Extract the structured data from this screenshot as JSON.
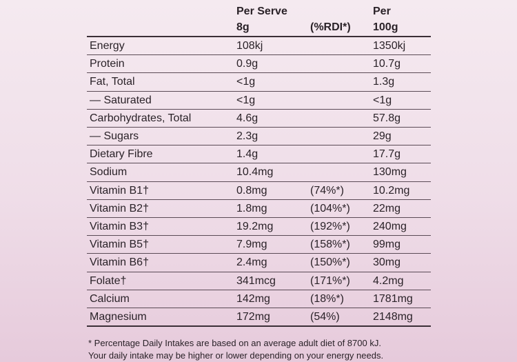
{
  "table": {
    "header": [
      [
        "Per Serve",
        "8g"
      ],
      [
        "(%RDI*)"
      ],
      [
        "Per",
        "100g"
      ]
    ],
    "rows": [
      [
        "Energy",
        "108kj",
        null,
        "1350kj"
      ],
      [
        "Protein",
        "0.9g",
        null,
        "10.7g"
      ],
      [
        "Fat, Total",
        "<1g",
        null,
        "1.3g"
      ],
      [
        "— Saturated",
        "<1g",
        null,
        "<1g"
      ],
      [
        "Carbohydrates, Total",
        "4.6g",
        null,
        "57.8g"
      ],
      [
        "— Sugars",
        "2.3g",
        null,
        "29g"
      ],
      [
        "Dietary Fibre",
        "1.4g",
        null,
        "17.7g"
      ],
      [
        "Sodium",
        "10.4mg",
        null,
        "130mg"
      ],
      [
        "Vitamin B1†",
        "0.8mg",
        "(74%*)",
        "10.2mg"
      ],
      [
        "Vitamin B2†",
        "1.8mg",
        "(104%*)",
        "22mg"
      ],
      [
        "Vitamin B3†",
        "19.2mg",
        "(192%*)",
        "240mg"
      ],
      [
        "Vitamin B5†",
        "7.9mg",
        "(158%*)",
        "99mg"
      ],
      [
        "Vitamin B6†",
        "2.4mg",
        "(150%*)",
        "30mg"
      ],
      [
        "Folate†",
        "341mcg",
        "(171%*)",
        "4.2mg"
      ],
      [
        "Calcium",
        "142mg",
        "(18%*)",
        "1781mg"
      ],
      [
        "Magnesium",
        "172mg",
        "(54%)",
        "2148mg"
      ]
    ],
    "footnote": [
      "* Percentage Daily Intakes are based on an average adult diet of 8700 kJ.",
      "  Your daily intake may be higher or lower depending on your energy needs."
    ]
  }
}
